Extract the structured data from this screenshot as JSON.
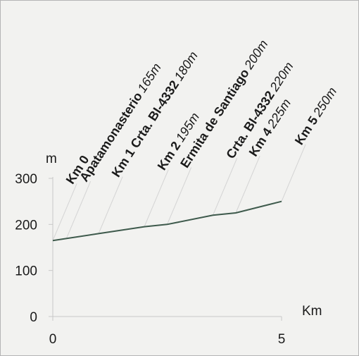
{
  "chart_data": {
    "type": "line",
    "ylabel": "m",
    "xlabel": "Km",
    "xlim": [
      0,
      5
    ],
    "ylim": [
      0,
      300
    ],
    "x_ticks": [
      "0",
      "5"
    ],
    "y_ticks": [
      "0",
      "100",
      "200",
      "300"
    ],
    "series": [
      {
        "x": [
          0,
          1,
          2,
          2.5,
          3.5,
          4,
          5
        ],
        "y": [
          165,
          180,
          195,
          200,
          220,
          225,
          250
        ]
      }
    ],
    "annotations": [
      {
        "x": 0,
        "y": 165,
        "name": "Km 0",
        "value": ""
      },
      {
        "x": 0.3,
        "y": 170,
        "name": "Apatamonasterio",
        "value": "165m"
      },
      {
        "x": 1,
        "y": 180,
        "name": "Km 1 Crta. BI-4332",
        "value": "180m"
      },
      {
        "x": 2,
        "y": 195,
        "name": "Km 2",
        "value": "195m"
      },
      {
        "x": 2.5,
        "y": 200,
        "name": "Ermita de Santiago",
        "value": "200m"
      },
      {
        "x": 3.5,
        "y": 220,
        "name": "Crta. BI-4332",
        "value": "220m"
      },
      {
        "x": 4,
        "y": 225,
        "name": "Km 4",
        "value": "225m"
      },
      {
        "x": 5,
        "y": 250,
        "name": "Km 5",
        "value": "250m"
      }
    ],
    "colors": {
      "line": "#3e5a4c",
      "axis": "#c8c8c8",
      "leader": "#d4d4d4",
      "text": "#1a1a1a",
      "background": "#f2f2f0"
    }
  }
}
